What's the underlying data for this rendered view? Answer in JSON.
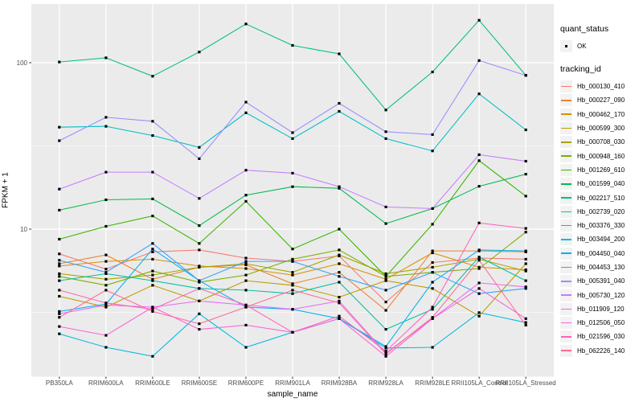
{
  "figure": {
    "bg": "#FFFFFF",
    "panel_bg": "#EBEBEB",
    "grid_color": "#FFFFFF",
    "tick_color": "#333333",
    "tick_label_color": "#4D4D4D",
    "marker_color": "#000000",
    "legend_key_fill": "#F2F2F2"
  },
  "axes": {
    "x_title": "sample_name",
    "y_title": "FPKM + 1",
    "y_ticks": [
      {
        "label": "100",
        "value": 100
      },
      {
        "label": "10",
        "value": 10
      }
    ],
    "y_minor_values": [
      31.623,
      3.1623
    ]
  },
  "legend": {
    "quant_status_title": "quant_status",
    "quant_status_label": "OK",
    "tracking_title": "tracking_id"
  },
  "chart_data": {
    "type": "line",
    "title": "",
    "xlabel": "sample_name",
    "ylabel": "FPKM + 1",
    "y_scale": "log10",
    "ylim": [
      1.3,
      230
    ],
    "grid": true,
    "legend_position": "right",
    "marker": "small-black-square",
    "categories": [
      "PB350LA",
      "RRIM600LA",
      "RRIM600LE",
      "RRIM600SE",
      "RRIM600PE",
      "RRIM901LA",
      "RRIM928BA",
      "RRIM928LA",
      "RRIM928LE",
      "RRII105LA_Control",
      "RRII105LA_Stressed"
    ],
    "series": [
      {
        "name": "Hb_000130_410",
        "color": "#F8766D",
        "values": [
          7.1,
          5.75,
          7.3,
          7.5,
          6.7,
          6.4,
          6.9,
          3.65,
          6.3,
          6.7,
          6.6
        ]
      },
      {
        "name": "Hb_000227_090",
        "color": "#EA8331",
        "values": [
          6.2,
          7.0,
          5.0,
          5.9,
          6.1,
          4.7,
          5.5,
          3.25,
          7.4,
          7.4,
          7.3
        ]
      },
      {
        "name": "Hb_000462_170",
        "color": "#D89000",
        "values": [
          6.0,
          6.4,
          6.6,
          6.0,
          5.8,
          5.3,
          6.2,
          5.0,
          7.2,
          5.9,
          5.7
        ]
      },
      {
        "name": "Hb_000599_300",
        "color": "#C09B00",
        "values": [
          3.95,
          3.4,
          4.6,
          3.7,
          4.9,
          4.6,
          3.9,
          4.9,
          4.4,
          3.0,
          6.2
        ]
      },
      {
        "name": "Hb_000708_030",
        "color": "#A3A500",
        "values": [
          5.4,
          5.0,
          5.3,
          5.9,
          6.2,
          5.5,
          7.0,
          5.4,
          5.9,
          6.6,
          5.6
        ]
      },
      {
        "name": "Hb_000948_160",
        "color": "#7CAE00",
        "values": [
          5.2,
          4.6,
          5.6,
          4.8,
          5.3,
          6.6,
          7.5,
          5.2,
          5.5,
          5.8,
          9.6
        ]
      },
      {
        "name": "Hb_001269_610",
        "color": "#39B600",
        "values": [
          8.7,
          10.4,
          12.0,
          8.2,
          14.7,
          7.6,
          10.0,
          5.2,
          10.7,
          25.8,
          15.8
        ]
      },
      {
        "name": "Hb_001599_040",
        "color": "#00BB4E",
        "values": [
          13.0,
          15.0,
          15.2,
          10.5,
          16.0,
          18.0,
          17.6,
          10.8,
          13.3,
          18.1,
          21.4
        ]
      },
      {
        "name": "Hb_002217_510",
        "color": "#00BF7D",
        "values": [
          101,
          107,
          83,
          116,
          171,
          127,
          113,
          52,
          88,
          180,
          84
        ]
      },
      {
        "name": "Hb_002739_020",
        "color": "#00C1A3",
        "values": [
          4.9,
          5.4,
          4.9,
          4.4,
          4.3,
          4.1,
          4.8,
          2.5,
          3.3,
          6.8,
          4.9
        ]
      },
      {
        "name": "Hb_003376_330",
        "color": "#00BFC4",
        "values": [
          41,
          41.5,
          36.5,
          31,
          50,
          35,
          51,
          35,
          29.5,
          65,
          39.5
        ]
      },
      {
        "name": "Hb_003494_200",
        "color": "#00BAE0",
        "values": [
          2.35,
          1.95,
          1.72,
          3.1,
          1.95,
          2.4,
          2.9,
          1.93,
          1.95,
          3.15,
          2.75
        ]
      },
      {
        "name": "Hb_004450_040",
        "color": "#00B0F6",
        "values": [
          3.2,
          3.55,
          7.6,
          4.9,
          3.4,
          3.3,
          2.9,
          1.97,
          4.8,
          7.5,
          7.4
        ]
      },
      {
        "name": "Hb_004453_130",
        "color": "#35A2FF",
        "values": [
          6.5,
          5.5,
          8.2,
          4.9,
          6.4,
          6.4,
          5.2,
          4.3,
          5.5,
          4.1,
          4.4
        ]
      },
      {
        "name": "Hb_005391_040",
        "color": "#9590FF",
        "values": [
          34,
          47,
          44.5,
          26.5,
          58,
          38,
          57,
          38.5,
          37,
          103,
          84
        ]
      },
      {
        "name": "Hb_005730_120",
        "color": "#C77CFF",
        "values": [
          17.4,
          22,
          22,
          15.3,
          22.6,
          21.7,
          18,
          13.6,
          13.3,
          28,
          25.6
        ]
      },
      {
        "name": "Hb_011909_120",
        "color": "#E76BF3",
        "values": [
          3.1,
          3.5,
          3.4,
          3.7,
          3.5,
          3.3,
          3.7,
          1.8,
          2.9,
          4.75,
          4.5
        ]
      },
      {
        "name": "Hb_012506_050",
        "color": "#FA62DB",
        "values": [
          2.6,
          2.3,
          3.4,
          2.5,
          2.65,
          2.4,
          2.9,
          1.72,
          2.9,
          4.4,
          2.9
        ]
      },
      {
        "name": "Hb_021596_030",
        "color": "#FF62BC",
        "values": [
          4.3,
          3.6,
          3.3,
          4.4,
          3.5,
          2.4,
          3.0,
          1.85,
          3.4,
          10.9,
          10.1
        ]
      },
      {
        "name": "Hb_062226_140",
        "color": "#FF6A98",
        "values": [
          2.95,
          4.3,
          3.2,
          2.7,
          3.4,
          4.3,
          3.6,
          1.78,
          2.95,
          6.5,
          2.65
        ]
      }
    ]
  }
}
